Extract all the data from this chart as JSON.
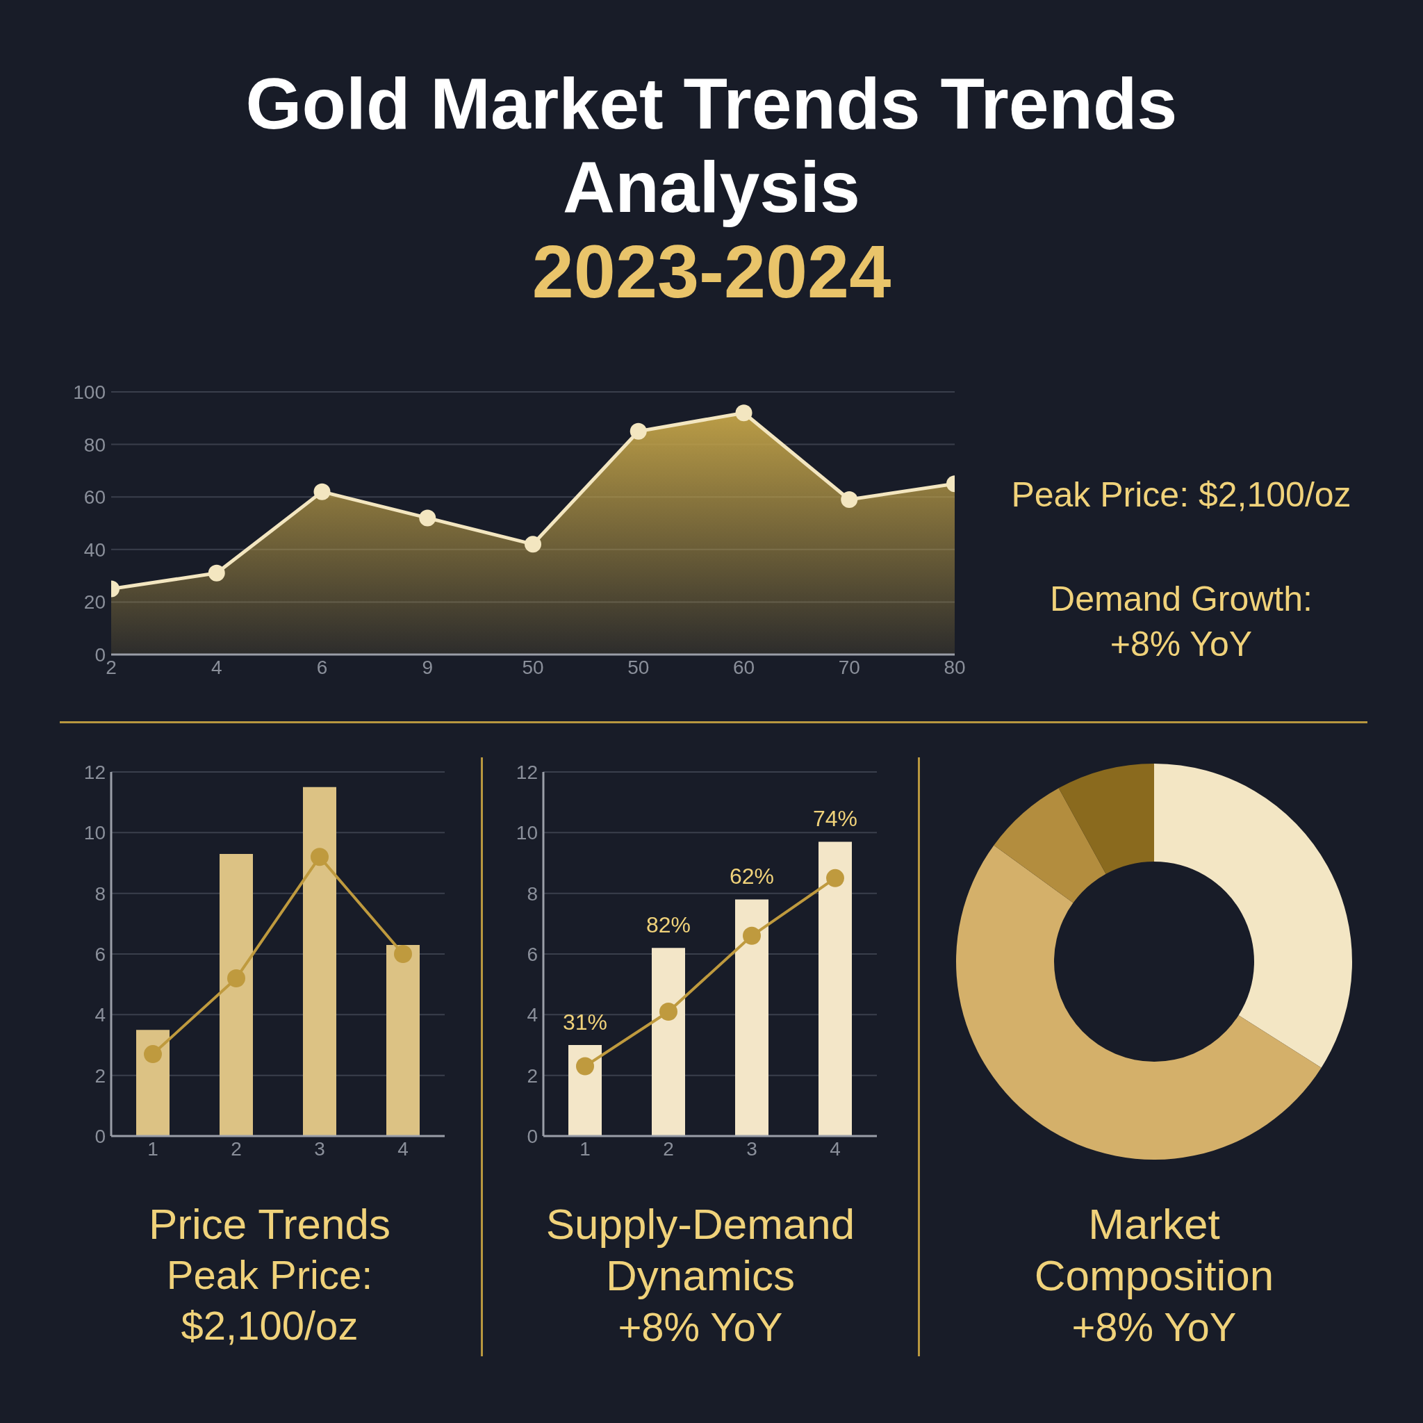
{
  "chart_data": [
    {
      "type": "area",
      "title": "Gold Market Trends Trends Analysis",
      "subtitle": "2023-2024",
      "categories": [
        "2",
        "4",
        "6",
        "9",
        "50",
        "50",
        "60",
        "70",
        "80"
      ],
      "series": [
        {
          "color": "#c4a448",
          "values": [
            25,
            31,
            62,
            52,
            42,
            85,
            92,
            59,
            65
          ]
        }
      ],
      "ylim": [
        0,
        100
      ],
      "yticks": [
        0,
        20,
        40,
        60,
        80,
        100
      ],
      "grid": "y",
      "marker": "circle",
      "annotations": [
        "Peak Price: $2,100/oz",
        "Demand Growth: +8% YoY"
      ]
    },
    {
      "type": "bar",
      "title": "Price Trends",
      "subtitle": "Peak Price: $2,100/oz",
      "categories": [
        "1",
        "2",
        "3",
        "4"
      ],
      "series": [
        {
          "color": "#dcc284",
          "values": [
            3.5,
            9.3,
            11.5,
            6.3
          ]
        },
        {
          "type": "line",
          "color": "#bf9a3e",
          "values": [
            2.7,
            5.2,
            9.2,
            6.0
          ]
        }
      ],
      "ylim": [
        0,
        12
      ],
      "yticks": [
        0,
        2,
        4,
        6,
        8,
        10,
        12
      ],
      "grid": "y",
      "marker": "circle"
    },
    {
      "type": "bar",
      "title": "Supply-Demand Dynamics",
      "subtitle": "+8% YoY",
      "categories": [
        "1",
        "2",
        "3",
        "4"
      ],
      "annotations": [
        {
          "text": "31%",
          "x": "1",
          "y": 3.0
        },
        {
          "text": "82%",
          "x": "2",
          "y": 6.2
        },
        {
          "text": "62%",
          "x": "3",
          "y": 7.8
        },
        {
          "text": "74%",
          "x": "4",
          "y": 9.7
        }
      ],
      "series": [
        {
          "color": "#f3e6c8",
          "values": [
            3.0,
            6.2,
            7.8,
            9.7
          ]
        },
        {
          "type": "line",
          "color": "#bf9a3e",
          "values": [
            2.3,
            4.1,
            6.6,
            8.5
          ]
        }
      ],
      "ylim": [
        0,
        12
      ],
      "yticks": [
        0,
        2,
        4,
        6,
        8,
        10,
        12
      ],
      "grid": "y",
      "marker": "circle"
    },
    {
      "type": "donut",
      "title": "Market Composition",
      "subtitle": "+8% YoY",
      "categories": [
        null,
        null,
        null,
        null
      ],
      "values": [
        34,
        51,
        7,
        8
      ],
      "colors": [
        "#f3e6c4",
        "#d4b06a",
        "#b38d3e",
        "#8a6a1e"
      ]
    }
  ]
}
